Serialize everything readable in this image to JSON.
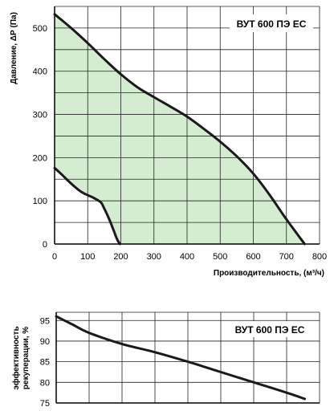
{
  "chart_data": [
    {
      "type": "area",
      "title": "ВУТ 600 ПЭ ЕС",
      "xlabel": "Производительность, (м³/ч)",
      "ylabel": "Давление, ΔР (Па)",
      "xlim": [
        0,
        800
      ],
      "ylim": [
        0,
        550
      ],
      "xticks": [
        "0",
        "100",
        "200",
        "300",
        "400",
        "500",
        "600",
        "700",
        "800"
      ],
      "yticks": [
        "0",
        "100",
        "200",
        "300",
        "400",
        "500"
      ],
      "grid": true,
      "fill_color": "#d4ecd0",
      "line_color": "#1a1a1a",
      "series": [
        {
          "x": [
            0,
            50,
            100,
            150,
            200,
            250,
            300,
            350,
            400,
            450,
            500,
            550,
            600,
            650,
            700,
            755
          ],
          "y": [
            532,
            500,
            465,
            428,
            393,
            363,
            340,
            318,
            295,
            267,
            237,
            203,
            163,
            113,
            57,
            0
          ]
        },
        {
          "x": [
            0,
            20,
            40,
            60,
            80,
            100,
            120,
            140,
            150,
            160,
            170,
            180,
            188,
            197
          ],
          "y": [
            176,
            162,
            147,
            133,
            121,
            113,
            106,
            96,
            82,
            66,
            48,
            28,
            12,
            0
          ]
        }
      ]
    },
    {
      "type": "line",
      "title": "ВУТ 600 ПЭ ЕС",
      "ylabel": "эффективность рекуперации, %",
      "xlim": [
        0,
        800
      ],
      "ylim": [
        75,
        97
      ],
      "yticks": [
        "75",
        "80",
        "85",
        "90",
        "95"
      ],
      "grid": true,
      "line_color": "#1a1a1a",
      "series": [
        {
          "x": [
            0,
            50,
            100,
            200,
            300,
            400,
            500,
            600,
            700,
            755
          ],
          "y": [
            96,
            94,
            92,
            89.3,
            87.3,
            85,
            82.5,
            80,
            77.5,
            76
          ]
        }
      ]
    }
  ]
}
